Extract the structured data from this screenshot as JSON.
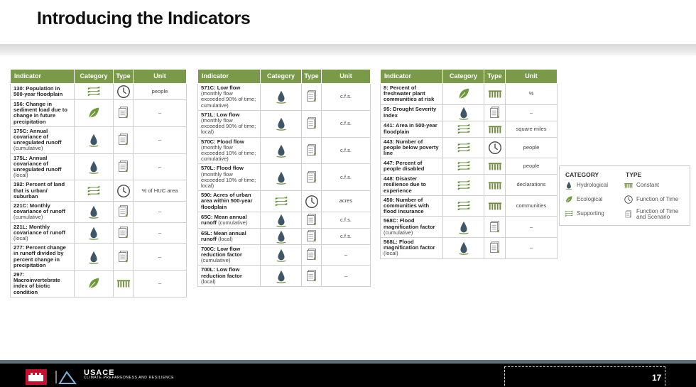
{
  "title": "Introducing the Indicators",
  "tables": [
    {
      "header": [
        "Indicator",
        "Category",
        "Type",
        "Unit"
      ],
      "rows": [
        {
          "name": "130: Population in 500-year floodplain",
          "category": "Supporting",
          "type": "Function of Time",
          "unit": "people"
        },
        {
          "name": "156: Change in sediment load due to change in future precipitation",
          "category": "Ecological",
          "type": "Function of Time and Scenario",
          "unit": "–"
        },
        {
          "name": "175C: Annual covariance of unregulated runoff",
          "note": "(cumulative)",
          "category": "Hydrological",
          "type": "Function of Time and Scenario",
          "unit": "–"
        },
        {
          "name": "175L: Annual covariance of unregulated runoff",
          "note": "(local)",
          "category": "Hydrological",
          "type": "Function of Time and Scenario",
          "unit": "–"
        },
        {
          "name": "192: Percent of land that is urban/ suburban",
          "category": "Supporting",
          "type": "Function of Time",
          "unit": "% of HUC area"
        },
        {
          "name": "221C: Monthly covariance of runoff",
          "note": "(cumulative)",
          "category": "Hydrological",
          "type": "Function of Time and Scenario",
          "unit": "–"
        },
        {
          "name": "221L: Monthly covariance of runoff",
          "note": "(local)",
          "category": "Hydrological",
          "type": "Function of Time and Scenario",
          "unit": "–"
        },
        {
          "name": "277: Percent change in runoff divided by percent change in precipitation",
          "category": "Hydrological",
          "type": "Function of Time and Scenario",
          "unit": "–"
        },
        {
          "name": "297: Macroinvertebrate index of biotic condition",
          "category": "Ecological",
          "type": "Constant",
          "unit": "–"
        }
      ]
    },
    {
      "header": [
        "Indicator",
        "Category",
        "Type",
        "Unit"
      ],
      "rows": [
        {
          "name": "571C: Low flow",
          "note": "(monthly flow exceeded 90% of time; cumulative)",
          "category": "Hydrological",
          "type": "Function of Time and Scenario",
          "unit": "c.f.s."
        },
        {
          "name": "571L: Low flow",
          "note": "(monthly flow exceeded 90% of time; local)",
          "category": "Hydrological",
          "type": "Function of Time and Scenario",
          "unit": "c.f.s."
        },
        {
          "name": "570C: Flood flow",
          "note": "(monthly flow exceeded 10% of time; cumulative)",
          "category": "Hydrological",
          "type": "Function of Time and Scenario",
          "unit": "c.f.s."
        },
        {
          "name": "570L: Flood flow",
          "note": "(monthly flow exceeded 10% of time; local)",
          "category": "Hydrological",
          "type": "Function of Time and Scenario",
          "unit": "c.f.s."
        },
        {
          "name": "590: Acres of urban area within 500-year floodplain",
          "category": "Supporting",
          "type": "Function of Time",
          "unit": "acres"
        },
        {
          "name": "65C: Mean annual runoff",
          "note": "(cumulative)",
          "category": "Hydrological",
          "type": "Function of Time and Scenario",
          "unit": "c.f.s."
        },
        {
          "name": "65L: Mean annual runoff",
          "note": "(local)",
          "category": "Hydrological",
          "type": "Function of Time and Scenario",
          "unit": "c.f.s."
        },
        {
          "name": "700C: Low flow reduction factor",
          "note": "(cumulative)",
          "category": "Hydrological",
          "type": "Function of Time and Scenario",
          "unit": "–"
        },
        {
          "name": "700L: Low flow reduction factor",
          "note": "(local)",
          "category": "Hydrological",
          "type": "Function of Time and Scenario",
          "unit": "–"
        }
      ]
    },
    {
      "header": [
        "Indicator",
        "Category",
        "Type",
        "Unit"
      ],
      "rows": [
        {
          "name": "8: Percent of freshwater plant communities at risk",
          "category": "Ecological",
          "type": "Constant",
          "unit": "%"
        },
        {
          "name": "95: Drought Severity Index",
          "category": "Hydrological",
          "type": "Function of Time and Scenario",
          "unit": "–"
        },
        {
          "name": "441: Area in 500-year floodplain",
          "category": "Supporting",
          "type": "Constant",
          "unit": "square miles"
        },
        {
          "name": "443: Number of people below poverty line",
          "category": "Supporting",
          "type": "Function of Time",
          "unit": "people"
        },
        {
          "name": "447: Percent of people disabled",
          "category": "Supporting",
          "type": "Constant",
          "unit": "people"
        },
        {
          "name": "448: Disaster resilience due to experience",
          "category": "Supporting",
          "type": "Constant",
          "unit": "declarations"
        },
        {
          "name": "450: Number of communities with flood insurance",
          "category": "Supporting",
          "type": "Constant",
          "unit": "communities"
        },
        {
          "name": "568C: Flood magnification factor",
          "note": "(cumulative)",
          "category": "Hydrological",
          "type": "Function of Time and Scenario",
          "unit": "–"
        },
        {
          "name": "568L: Flood magnification factor",
          "note": "(local)",
          "category": "Hydrological",
          "type": "Function of Time and Scenario",
          "unit": "–"
        }
      ]
    }
  ],
  "legend": {
    "category_heading": "CATEGORY",
    "type_heading": "TYPE",
    "categories": [
      "Hydrological",
      "Ecological",
      "Supporting"
    ],
    "types": [
      "Constant",
      "Function of Time",
      "Function of Time and Scenario"
    ]
  },
  "footer": {
    "brand": "USACE",
    "brand_sub": "CLIMATE PREPAREDNESS AND RESILIENCE",
    "page": "17"
  }
}
